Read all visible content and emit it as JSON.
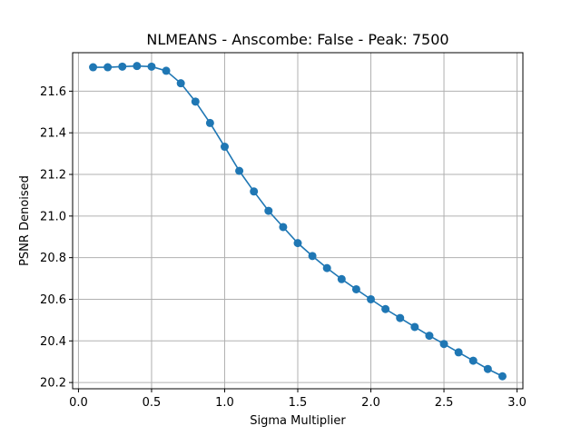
{
  "chart_data": {
    "type": "line",
    "title": "NLMEANS - Anscombe: False - Peak: 7500",
    "xlabel": "Sigma Multiplier",
    "ylabel": "PSNR Denoised",
    "xlim": [
      -0.04,
      3.04
    ],
    "ylim": [
      20.17,
      21.785
    ],
    "xticks": [
      0.0,
      0.5,
      1.0,
      1.5,
      2.0,
      2.5,
      3.0
    ],
    "xtick_labels": [
      "0.0",
      "0.5",
      "1.0",
      "1.5",
      "2.0",
      "2.5",
      "3.0"
    ],
    "yticks": [
      20.2,
      20.4,
      20.6,
      20.8,
      21.0,
      21.2,
      21.4,
      21.6
    ],
    "ytick_labels": [
      "20.2",
      "20.4",
      "20.6",
      "20.8",
      "21.0",
      "21.2",
      "21.4",
      "21.6"
    ],
    "grid": true,
    "series": [
      {
        "name": "PSNR Denoised",
        "color": "#1f77b4",
        "marker": "circle",
        "x": [
          0.1,
          0.2,
          0.3,
          0.4,
          0.5,
          0.6,
          0.7,
          0.8,
          0.9,
          1.0,
          1.1,
          1.2,
          1.3,
          1.4,
          1.5,
          1.6,
          1.7,
          1.8,
          1.9,
          2.0,
          2.1,
          2.2,
          2.3,
          2.4,
          2.5,
          2.6,
          2.7,
          2.8,
          2.9
        ],
        "y": [
          21.715,
          21.715,
          21.718,
          21.721,
          21.718,
          21.698,
          21.638,
          21.55,
          21.447,
          21.333,
          21.217,
          21.118,
          21.025,
          20.947,
          20.87,
          20.808,
          20.75,
          20.697,
          20.648,
          20.6,
          20.553,
          20.51,
          20.467,
          20.425,
          20.385,
          20.345,
          20.305,
          20.265,
          20.23
        ]
      }
    ]
  }
}
